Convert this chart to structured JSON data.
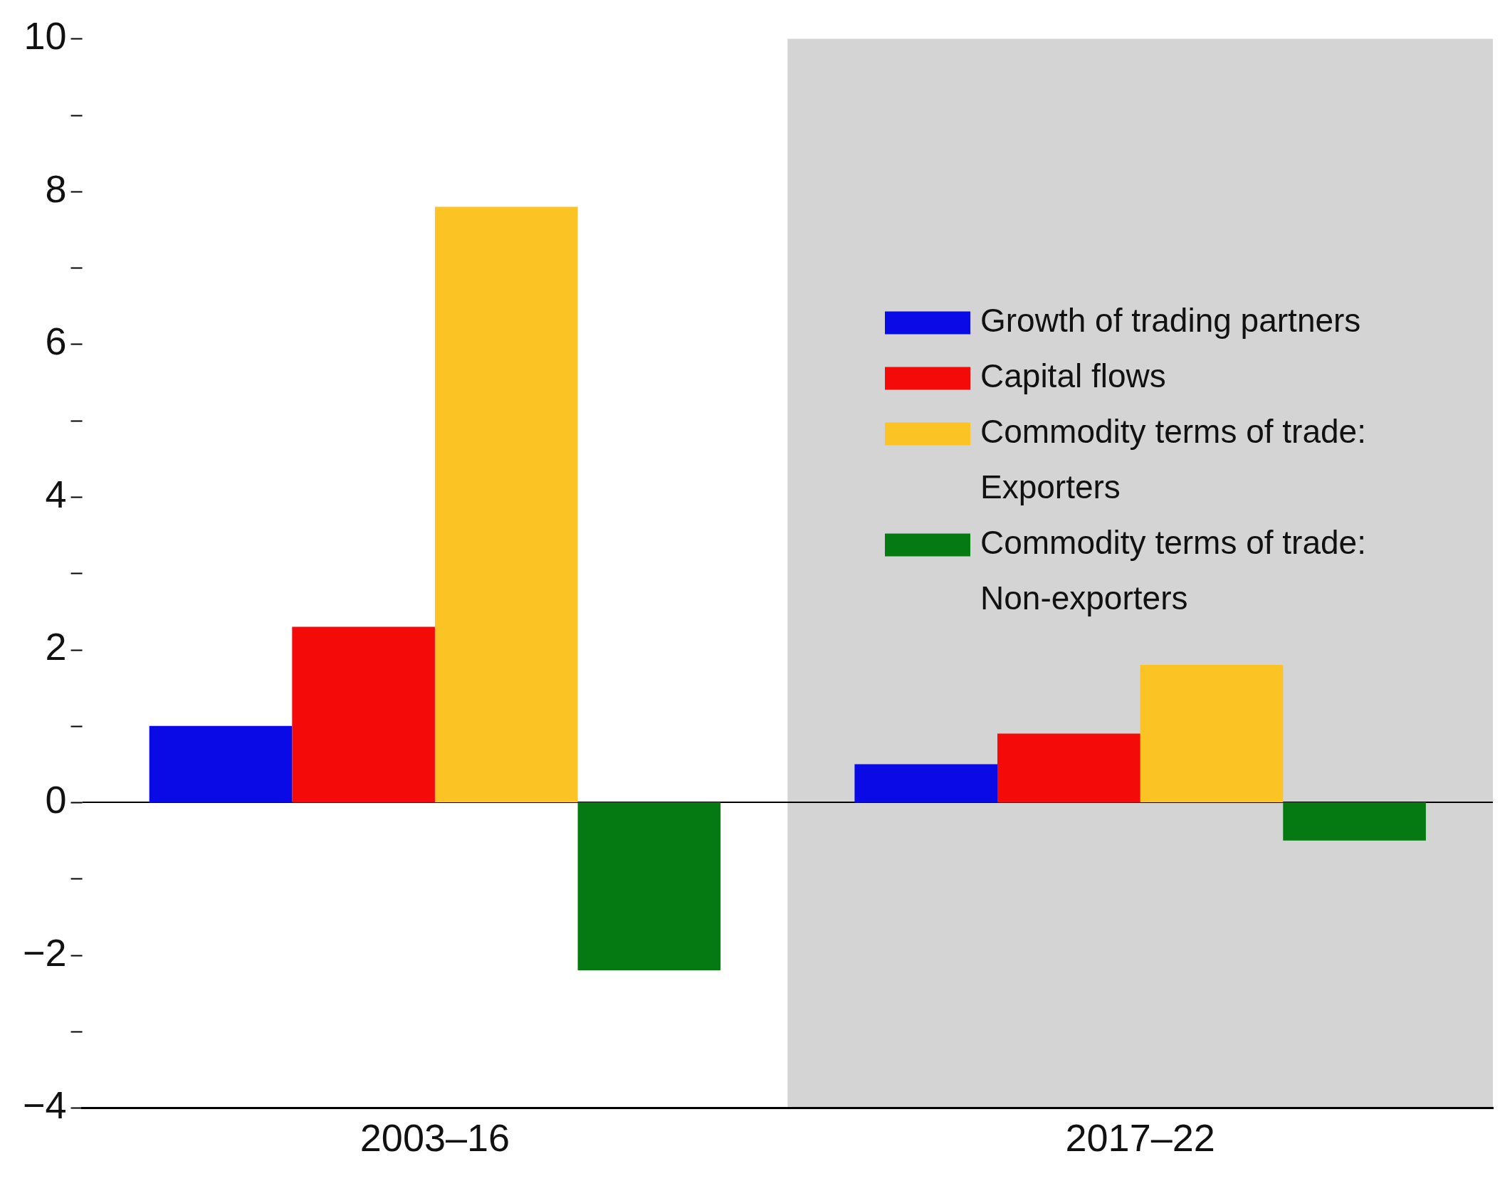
{
  "chart_data": {
    "type": "bar",
    "categories": [
      "2003–16",
      "2017–22"
    ],
    "series": [
      {
        "name": "Growth of trading partners",
        "color": "#0a0ae6",
        "values": [
          1.0,
          0.5
        ]
      },
      {
        "name": "Capital flows",
        "color": "#f50a0a",
        "values": [
          2.3,
          0.9
        ]
      },
      {
        "name": "Commodity terms of trade: Exporters",
        "color": "#fbc324",
        "values": [
          7.8,
          1.8
        ]
      },
      {
        "name": "Commodity terms of trade: Non-exporters",
        "color": "#067a12",
        "values": [
          -2.2,
          -0.5
        ]
      }
    ],
    "ylim": [
      -4,
      10
    ],
    "yticks": [
      {
        "value": -4,
        "label": "−4"
      },
      {
        "value": -3,
        "label": null
      },
      {
        "value": -2,
        "label": "−2"
      },
      {
        "value": -1,
        "label": null
      },
      0,
      {
        "value": 1,
        "label": null
      },
      2,
      {
        "value": 3,
        "label": null
      },
      4,
      {
        "value": 5,
        "label": null
      },
      6,
      {
        "value": 7,
        "label": null
      },
      8,
      {
        "value": 9,
        "label": null
      },
      10
    ],
    "bands": [
      {
        "axis": "x",
        "from": "2017–22",
        "to": "2017–22",
        "color": "#d4d4d4"
      }
    ],
    "legend": "top right"
  }
}
